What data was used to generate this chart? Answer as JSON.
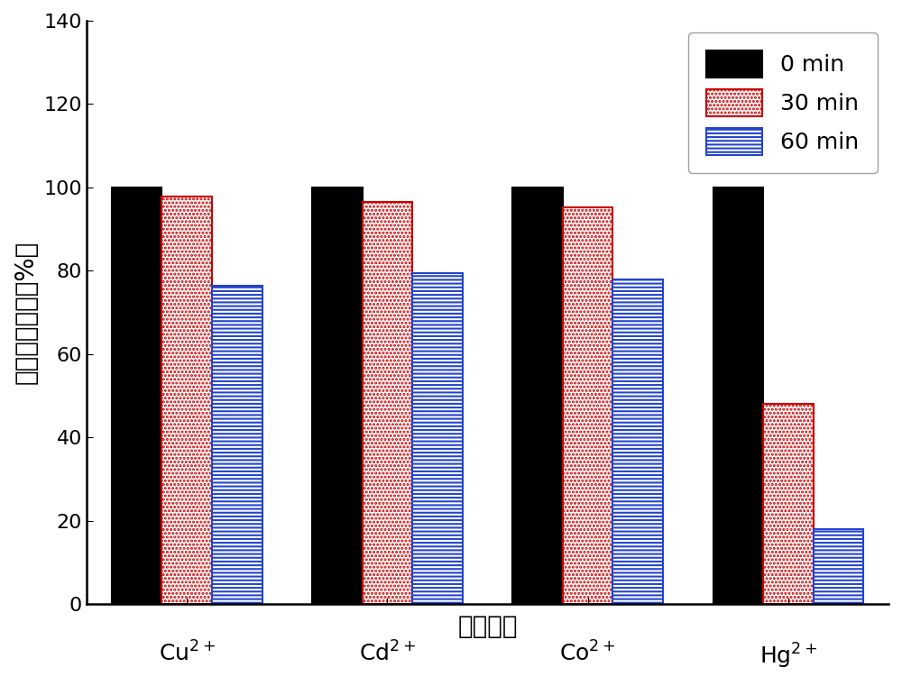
{
  "categories": [
    "Cu",
    "Cd",
    "Co",
    "Hg"
  ],
  "series": {
    "0 min": [
      100,
      100,
      100,
      100
    ],
    "30 min": [
      97.8,
      96.5,
      95.2,
      48.0
    ],
    "60 min": [
      76.5,
      79.5,
      78.0,
      18.0
    ]
  },
  "colors": {
    "0 min": "#000000",
    "30 min": "#ffffff",
    "60 min": "#ffffff"
  },
  "hatches": {
    "0 min": "",
    "30 min": "....",
    "60 min": "----"
  },
  "edgecolors": {
    "0 min": "#000000",
    "30 min": "#cc0000",
    "60 min": "#2244cc"
  },
  "hatch_colors": {
    "0 min": "#000000",
    "30 min": "#000000",
    "60 min": "#888888"
  },
  "ylabel": "残留离子含量（%）",
  "xlabel": "离子种类",
  "ylim": [
    0,
    140
  ],
  "yticks": [
    0,
    20,
    40,
    60,
    80,
    100,
    120,
    140
  ],
  "legend_labels": [
    "0 min",
    "30 min",
    "60 min"
  ],
  "bar_width": 0.25,
  "figsize": [
    10.0,
    7.71
  ],
  "dpi": 100,
  "background_color": "#ffffff",
  "font_size": 18,
  "tick_font_size": 16,
  "axis_font_size": 20
}
